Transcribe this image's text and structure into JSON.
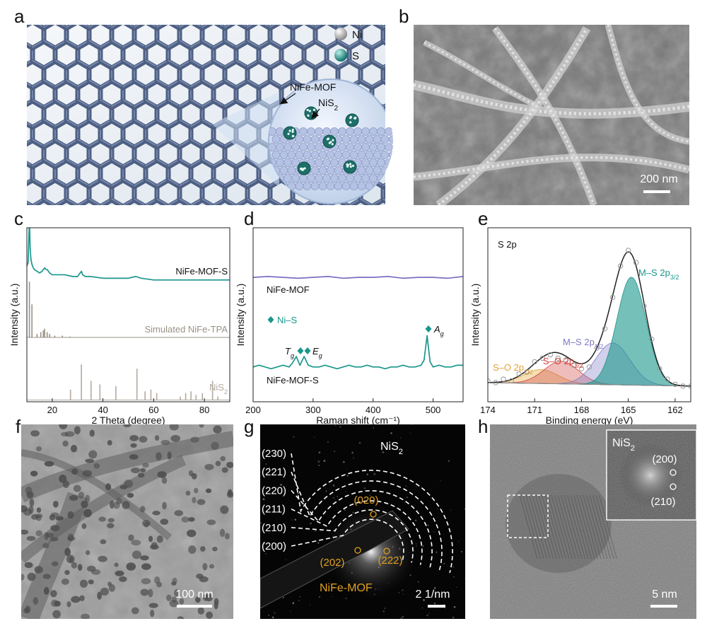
{
  "panel_labels": [
    "a",
    "b",
    "c",
    "d",
    "e",
    "f",
    "g",
    "h"
  ],
  "panel_a": {
    "legend": [
      "Ni",
      "S"
    ],
    "mof_label": "NiFe-MOF",
    "particle_label": {
      "text": "NiS",
      "sub": "2"
    }
  },
  "panel_b": {
    "scale_bar": "200 nm"
  },
  "chart_data": [
    {
      "type": "line",
      "ylabel": "Intensity (a.u.)",
      "xlabel": "2 Theta (degree)",
      "xlim": [
        10,
        90
      ],
      "xticks": [
        20,
        40,
        60,
        80
      ],
      "ylim": [
        0,
        100
      ],
      "series": [
        {
          "name": "NiFe-MOF-S",
          "kind": "line",
          "color": "#1b968c",
          "x": [
            10,
            10.5,
            11,
            11.3,
            11.6,
            12,
            12.5,
            13,
            14,
            15,
            16,
            17,
            17.5,
            18,
            19,
            20,
            22,
            25,
            28,
            30,
            31,
            31.5,
            32,
            33,
            35,
            40,
            45,
            50,
            53,
            55,
            60,
            65,
            70,
            75,
            80,
            85,
            90
          ],
          "values": [
            78,
            80,
            105,
            88,
            82,
            79,
            77,
            76,
            75,
            74,
            75,
            77,
            76,
            76,
            74,
            73,
            73,
            73,
            72,
            72,
            74,
            75,
            73,
            72,
            72,
            71,
            71,
            71,
            72,
            71,
            70,
            70,
            70,
            70,
            70,
            70,
            70
          ]
        },
        {
          "name": "Simulated NiFe-TPA",
          "kind": "sticks",
          "color": "#9a9184",
          "baseline": 37,
          "x": [
            11,
            12,
            14,
            15.5,
            16.5,
            17,
            18,
            19,
            21,
            24,
            27
          ],
          "values": [
            69,
            56,
            39,
            40,
            41,
            42,
            40,
            39,
            38,
            38,
            37.5
          ]
        },
        {
          "name": {
            "text": "NiS",
            "sub": "2"
          },
          "kind": "sticks",
          "color": "#b3aaa0",
          "baseline": 1,
          "x": [
            27.2,
            31.5,
            35.3,
            38.8,
            45.1,
            53.4,
            56.6,
            58.9,
            61.2,
            70.5,
            72.6,
            74.7,
            76.7,
            79.2,
            83.2,
            85.3
          ],
          "values": [
            7,
            21.5,
            12,
            10,
            9,
            19,
            6,
            7,
            5,
            3,
            5,
            6,
            4,
            5,
            12,
            3
          ]
        }
      ]
    },
    {
      "type": "line",
      "ylabel": "Intensity (a.u.)",
      "xlabel": "Raman shift (cm⁻¹)",
      "xlim": [
        200,
        550
      ],
      "xticks": [
        200,
        300,
        400,
        500
      ],
      "ylim": [
        0,
        100
      ],
      "series": [
        {
          "name": "NiFe-MOF",
          "kind": "line",
          "color": "#7a6fc2",
          "x": [
            200,
            225,
            250,
            275,
            300,
            325,
            350,
            375,
            400,
            425,
            450,
            475,
            500,
            525,
            550
          ],
          "values": [
            71.5,
            72,
            71.5,
            71,
            71.5,
            72,
            71,
            71.5,
            71.5,
            72,
            71,
            71.5,
            71.5,
            71,
            72
          ]
        },
        {
          "name": "NiFe-MOF-S",
          "kind": "line",
          "color": "#1b968c",
          "x": [
            200,
            210,
            220,
            230,
            240,
            250,
            260,
            265,
            272,
            278,
            285,
            292,
            300,
            310,
            320,
            330,
            340,
            350,
            360,
            370,
            380,
            390,
            400,
            410,
            420,
            430,
            440,
            450,
            460,
            470,
            480,
            485,
            490,
            495,
            500,
            510,
            520,
            530,
            540,
            550
          ],
          "values": [
            20,
            21,
            20,
            19,
            20,
            21,
            20,
            22,
            26,
            21,
            26,
            21,
            20,
            20,
            21,
            20,
            19,
            20,
            21,
            20,
            20,
            21,
            20,
            20,
            19,
            20,
            20,
            21,
            20,
            20,
            21,
            24,
            38,
            23,
            20,
            21,
            20,
            20,
            21,
            21
          ]
        }
      ],
      "annotations": [
        "Ni–S",
        {
          "text": "T",
          "sub": "g"
        },
        {
          "text": "E",
          "sub": "g"
        },
        {
          "text": "A",
          "sub": "g"
        }
      ],
      "annotation_color": "#1b968c"
    },
    {
      "type": "fit",
      "label": "S 2p",
      "ylabel": "Intensity (a.u.)",
      "xlabel": "Binding energy (eV)",
      "xlim": [
        174,
        161
      ],
      "xticks": [
        174,
        171,
        168,
        165,
        162
      ],
      "ylim": [
        0,
        100
      ],
      "background": {
        "x": [
          174,
          161
        ],
        "values": [
          11,
          9
        ]
      },
      "components": [
        {
          "name": {
            "text": "S–O 2p",
            "sub": "1/2"
          },
          "color": "#e3a232",
          "center": 170.6,
          "height": 8,
          "fwhm": 2.6
        },
        {
          "name": {
            "text": "S–O 2p",
            "sub": "3/2"
          },
          "color": "#d0433f",
          "center": 169.3,
          "height": 13,
          "fwhm": 2.6
        },
        {
          "name": {
            "text": "M–S 2p",
            "sub": "1/2"
          },
          "color": "#7f7bc6",
          "center": 166.0,
          "height": 24,
          "fwhm": 2.6
        },
        {
          "name": {
            "text": "M–S 2p",
            "sub": "3/2"
          },
          "color": "#1b968c",
          "center": 164.8,
          "height": 62,
          "fwhm": 2.2
        }
      ],
      "fit_color": "#222222",
      "raw": {
        "color": "#9a9a9a",
        "x": [
          174,
          173.5,
          173,
          172.5,
          172,
          171.5,
          171,
          170.5,
          170,
          169.5,
          169,
          168.5,
          168,
          167.5,
          167,
          166.5,
          166,
          165.5,
          165,
          164.5,
          164,
          163.5,
          163,
          162.5,
          162,
          161.5,
          161
        ],
        "values": [
          12,
          11,
          13,
          12,
          16,
          17,
          23,
          25,
          27,
          25,
          24,
          21,
          19,
          20,
          31,
          42,
          60,
          78,
          87,
          80,
          55,
          36,
          19,
          13,
          10,
          9,
          9
        ]
      }
    }
  ],
  "panel_f": {
    "scale_bar": "100 nm"
  },
  "panel_g": {
    "title": {
      "text": "NiS",
      "sub": "2"
    },
    "rings": [
      "(230)",
      "(221)",
      "(220)",
      "(211)",
      "(210)",
      "(200)"
    ],
    "mof_spots": [
      "(020)",
      "(202)",
      "(222)"
    ],
    "mof_label": "NiFe-MOF",
    "scale_bar": "2 1/nm"
  },
  "panel_h": {
    "inset_title": {
      "text": "NiS",
      "sub": "2"
    },
    "spots": [
      "(200)",
      "(210)"
    ],
    "scale_bar": "5 nm"
  }
}
